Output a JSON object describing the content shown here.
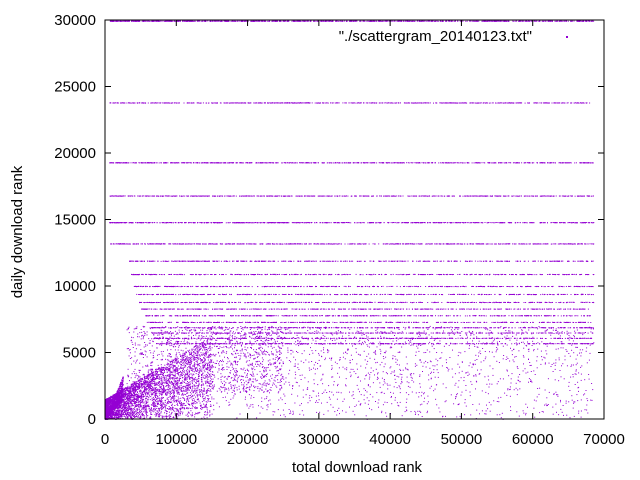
{
  "chart_data": {
    "type": "scatter",
    "title": "",
    "xlabel": "total download rank",
    "ylabel": "daily download rank",
    "xlim": [
      0,
      70000
    ],
    "ylim": [
      0,
      30000
    ],
    "x_ticks": [
      0,
      10000,
      20000,
      30000,
      40000,
      50000,
      60000,
      70000
    ],
    "y_ticks": [
      0,
      5000,
      10000,
      15000,
      20000,
      25000,
      30000
    ],
    "grid": false,
    "legend_position": "top-right",
    "series": [
      {
        "name": "\"./scattergram_20140123.txt\"",
        "color": "#9400d3",
        "marker": "dot",
        "x_extent": [
          0,
          68500
        ],
        "rank_ties_y": [
          29950,
          23800,
          19300,
          16800,
          14800,
          13200,
          11900,
          10900,
          10000,
          9400,
          8800,
          8300,
          7800,
          7300,
          6900,
          6500,
          6100,
          5700
        ],
        "dense_region": {
          "x_range": [
            0,
            15000
          ],
          "y_range": [
            0,
            6000
          ]
        },
        "sparse_region": {
          "x_range": [
            15000,
            68500
          ],
          "y_range": [
            0,
            7000
          ]
        }
      }
    ]
  }
}
